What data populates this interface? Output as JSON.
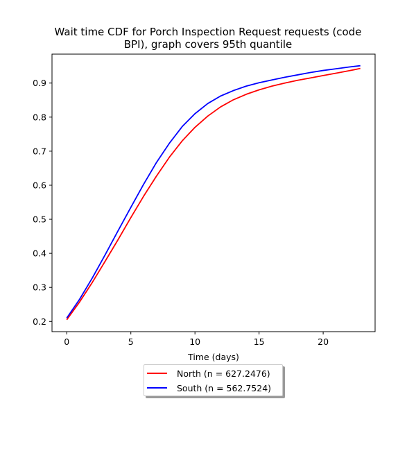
{
  "chart_data": {
    "type": "line",
    "title_line1": "Wait time CDF for Porch Inspection Request  requests (code",
    "title_line2": "BPI), graph covers 95th quantile",
    "xlabel": "Time (days)",
    "ylabel": "",
    "xlim": [
      -1.15,
      24.05
    ],
    "ylim": [
      0.17,
      0.985
    ],
    "xticks": [
      0,
      5,
      10,
      15,
      20
    ],
    "yticks": [
      0.2,
      0.3,
      0.4,
      0.5,
      0.6,
      0.7,
      0.8,
      0.9
    ],
    "grid": false,
    "legend_position": "below",
    "x": [
      0,
      1,
      2,
      3,
      4,
      5,
      6,
      7,
      8,
      9,
      10,
      11,
      12,
      13,
      14,
      15,
      16,
      17,
      18,
      19,
      20,
      21,
      22,
      22.9
    ],
    "series": [
      {
        "name": "North (n = 627.2476)",
        "color": "#ff0000",
        "values": [
          0.205,
          0.257,
          0.315,
          0.377,
          0.44,
          0.505,
          0.568,
          0.627,
          0.682,
          0.73,
          0.77,
          0.803,
          0.83,
          0.851,
          0.867,
          0.88,
          0.891,
          0.9,
          0.908,
          0.915,
          0.922,
          0.929,
          0.936,
          0.943
        ]
      },
      {
        "name": "South (n = 562.7524)",
        "color": "#0000ff",
        "values": [
          0.21,
          0.265,
          0.328,
          0.396,
          0.466,
          0.535,
          0.603,
          0.667,
          0.723,
          0.772,
          0.81,
          0.84,
          0.862,
          0.878,
          0.891,
          0.901,
          0.909,
          0.917,
          0.924,
          0.931,
          0.937,
          0.942,
          0.947,
          0.951
        ]
      }
    ]
  }
}
